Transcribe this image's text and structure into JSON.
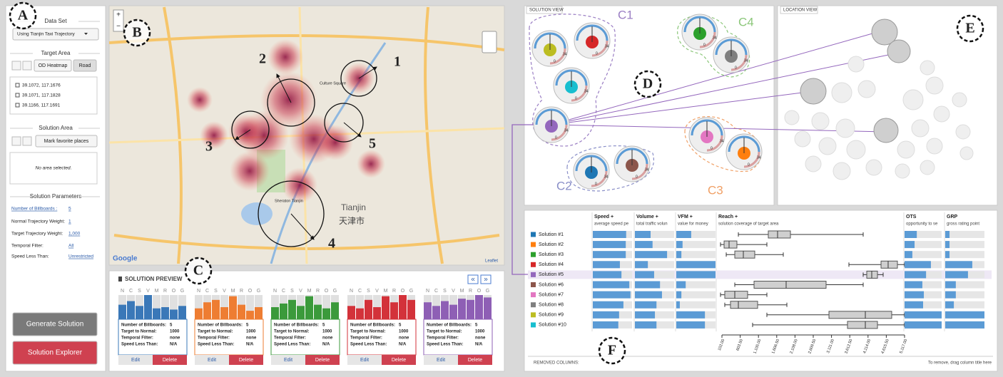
{
  "annotations": [
    "A",
    "B",
    "C",
    "D",
    "E",
    "F"
  ],
  "left_panel": {
    "data_set_label": "Data Set",
    "data_set": "Using Tianjin Taxi Trajectory",
    "target_area_label": "Target Area",
    "target_buttons": [
      "OD Heatmap",
      "Road"
    ],
    "coordinates": [
      "39.1072, 117.1676",
      "39.1071, 117.1828",
      "39.1166, 117.1691"
    ],
    "solution_area_label": "Solution Area",
    "mark_button": "Mark favorite places",
    "no_area": "No area selected.",
    "parameters_label": "Solution Parameters",
    "parameters": [
      {
        "label": "Number of Billboards :",
        "value": "5"
      },
      {
        "label": "Normal Trajectory Weight:",
        "value": "1"
      },
      {
        "label": "Target Trajectory Weight:",
        "value": "1,000"
      },
      {
        "label": "Temporal Filter:",
        "value": "All"
      },
      {
        "label": "Speed Less Than:",
        "value": "Unrestricted"
      }
    ],
    "buttons": [
      "Generate Solution",
      "Solution Explorer"
    ]
  },
  "map": {
    "zoom": [
      "+",
      "−"
    ],
    "markers": [
      "1",
      "2",
      "3",
      "4",
      "5"
    ],
    "labels": [
      "Culture Square",
      "Sheraton Tianjin",
      "Tianjin",
      "天津市"
    ],
    "attribution": [
      "Google",
      "Leaflet"
    ]
  },
  "preview": {
    "title": "SOLUTION PREVIEW",
    "nav": [
      "«",
      "»"
    ],
    "bar_letters": [
      "N",
      "C",
      "S",
      "V",
      "M",
      "R",
      "O",
      "G"
    ],
    "edit": "Edit",
    "delete": "Delete",
    "row_labels": [
      "Number of Billboards:",
      "Target to Normal:",
      "Temporal Filter:",
      "Speed Less Than:"
    ],
    "cards": [
      {
        "color": "#3a78b8",
        "bars": [
          60,
          75,
          55,
          100,
          45,
          50,
          40,
          55
        ],
        "values": [
          "5",
          "1000",
          "none",
          "N/A"
        ]
      },
      {
        "color": "#ee7d32",
        "bars": [
          45,
          70,
          80,
          50,
          95,
          60,
          35,
          50
        ],
        "values": [
          "5",
          "1000",
          "none",
          "N/A"
        ]
      },
      {
        "color": "#3b9a3b",
        "bars": [
          50,
          65,
          80,
          55,
          95,
          60,
          45,
          70
        ],
        "values": [
          "5",
          "1000",
          "none",
          "N/A"
        ]
      },
      {
        "color": "#d3323a",
        "bars": [
          55,
          45,
          80,
          50,
          95,
          70,
          100,
          80
        ],
        "values": [
          "5",
          "1000",
          "none",
          "N/A"
        ]
      },
      {
        "color": "#8e5fb5",
        "bars": [
          70,
          55,
          75,
          60,
          85,
          80,
          100,
          90
        ],
        "values": [
          "5",
          "1000",
          "none",
          "N/A"
        ]
      }
    ]
  },
  "solution_view": {
    "title": "SOLUTION VIEW",
    "gauge_scale": [
      "0",
      "34"
    ],
    "clusters": [
      {
        "name": "C1",
        "color": "#9b7fc4"
      },
      {
        "name": "C2",
        "color": "#8a8fc8"
      },
      {
        "name": "C3",
        "color": "#f0a066"
      },
      {
        "name": "C4",
        "color": "#8cc77a"
      }
    ]
  },
  "location_view": {
    "title": "LOCATION VIEW"
  },
  "table": {
    "bar_lim": [
      0,
      100
    ],
    "columns": [
      {
        "name": "Speed",
        "sort": "+",
        "subtitle": "average speed pe"
      },
      {
        "name": "Volume",
        "sort": "+",
        "subtitle": "total traffic volun"
      },
      {
        "name": "VFM",
        "sort": "+",
        "subtitle": "value for money"
      },
      {
        "name": "Reach",
        "sort": "+",
        "subtitle": "solution coverage of target area"
      },
      {
        "name": "OTS",
        "subtitle": "opportunity to se"
      },
      {
        "name": "GRP",
        "subtitle": "gross rating point"
      }
    ],
    "reach_lim": [
      102,
      5117
    ],
    "reach_ticks": [
      {
        "value": 102,
        "label": "102.00"
      },
      {
        "value": 603.5,
        "label": "603.50"
      },
      {
        "value": 1105,
        "label": "1,105.00"
      },
      {
        "value": 1606.5,
        "label": "1,606.50"
      },
      {
        "value": 2108,
        "label": "2,108.00"
      },
      {
        "value": 2609.5,
        "label": "2,609.50"
      },
      {
        "value": 3111,
        "label": "3,111.00"
      },
      {
        "value": 3612.5,
        "label": "3,612.50"
      },
      {
        "value": 4114,
        "label": "4,114.00"
      },
      {
        "value": 4615.5,
        "label": "4,615.50"
      },
      {
        "value": 5117,
        "label": "5,117.00"
      }
    ],
    "solutions": [
      {
        "name": "Solution #1",
        "color": "#1f77b4",
        "speed": 85,
        "volume": 40,
        "vfm": 38,
        "reach": {
          "min": 553,
          "q1": 1375,
          "median": 1630,
          "q3": 1983,
          "max": 3981
        },
        "ots": 33,
        "grp": 11
      },
      {
        "name": "Solution #2",
        "color": "#ff7f0e",
        "speed": 84,
        "volume": 45,
        "vfm": 16,
        "reach": {
          "min": 63,
          "q1": 161,
          "median": 298,
          "q3": 513,
          "max": 1336
        },
        "ots": 27,
        "grp": 11
      },
      {
        "name": "Solution #3",
        "color": "#2ca02c",
        "speed": 84,
        "volume": 82,
        "vfm": 13,
        "reach": {
          "min": 220,
          "q1": 455,
          "median": 690,
          "q3": 1003,
          "max": 1787
        },
        "ots": 21,
        "grp": 11
      },
      {
        "name": "Solution #4",
        "color": "#d62728",
        "speed": 69,
        "volume": 33,
        "vfm": 100,
        "reach": {
          "min": 3589,
          "q1": 4471,
          "median": 4666,
          "q3": 4921,
          "max": 5117
        },
        "ots": 71,
        "grp": 69
      },
      {
        "name": "Solution #5",
        "color": "#9467bd",
        "speed": 73,
        "volume": 49,
        "vfm": 100,
        "reach": {
          "min": 3981,
          "q1": 4079,
          "median": 4216,
          "q3": 4373,
          "max": 4529
        },
        "ots": 58,
        "grp": 58
      },
      {
        "name": "Solution #6",
        "color": "#8c564b",
        "speed": 93,
        "volume": 64,
        "vfm": 24,
        "reach": {
          "min": 455,
          "q1": 984,
          "median": 1865,
          "q3": 2962,
          "max": 3981
        },
        "ots": 48,
        "grp": 27
      },
      {
        "name": "Solution #7",
        "color": "#e377c2",
        "speed": 96,
        "volume": 69,
        "vfm": 13,
        "reach": {
          "min": 63,
          "q1": 180,
          "median": 455,
          "q3": 807,
          "max": 1336
        },
        "ots": 52,
        "grp": 27
      },
      {
        "name": "Solution #8",
        "color": "#7f7f7f",
        "speed": 78,
        "volume": 55,
        "vfm": 9,
        "reach": {
          "min": 180,
          "q1": 337,
          "median": 553,
          "q3": 1082,
          "max": 1885
        },
        "ots": 50,
        "grp": 22
      },
      {
        "name": "Solution #9",
        "color": "#bcbd22",
        "speed": 67,
        "volume": 51,
        "vfm": 73,
        "reach": {
          "min": 1336,
          "q1": 3041,
          "median": 4040,
          "q3": 4764,
          "max": 5117
        },
        "ots": 100,
        "grp": 100
      },
      {
        "name": "Solution #10",
        "color": "#17becf",
        "speed": 65,
        "volume": 55,
        "vfm": 73,
        "reach": {
          "min": 944,
          "q1": 3550,
          "median": 4040,
          "q3": 4373,
          "max": 5117
        },
        "ots": 100,
        "grp": 100
      }
    ],
    "removed_label": "REMOVED COLUMNS:",
    "removed_hint": "To remove, drag column title here"
  }
}
